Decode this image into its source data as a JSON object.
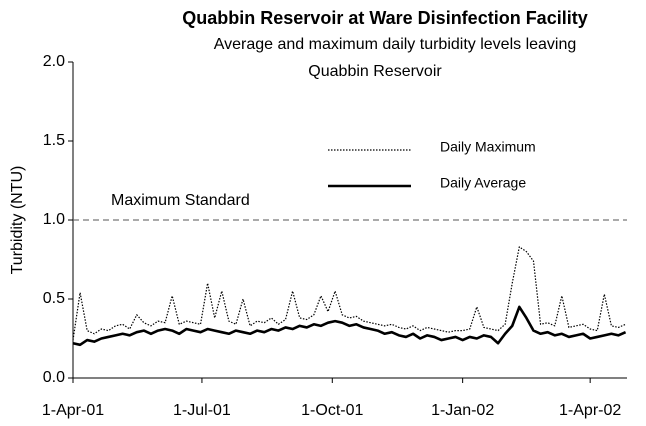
{
  "chart_data": {
    "type": "line",
    "title": "Quabbin Reservoir at Ware Disinfection Facility",
    "subtitle": [
      "Average and maximum daily turbidity levels leaving",
      "Quabbin Reservoir"
    ],
    "y_label": "Turbidity (NTU)",
    "x": [
      "2001-04-01",
      "2001-04-06",
      "2001-04-11",
      "2001-04-16",
      "2001-04-21",
      "2001-04-26",
      "2001-05-01",
      "2001-05-06",
      "2001-05-11",
      "2001-05-16",
      "2001-05-21",
      "2001-05-26",
      "2001-05-31",
      "2001-06-05",
      "2001-06-10",
      "2001-06-15",
      "2001-06-20",
      "2001-06-25",
      "2001-06-30",
      "2001-07-05",
      "2001-07-10",
      "2001-07-15",
      "2001-07-20",
      "2001-07-25",
      "2001-07-30",
      "2001-08-04",
      "2001-08-09",
      "2001-08-14",
      "2001-08-19",
      "2001-08-24",
      "2001-08-29",
      "2001-09-03",
      "2001-09-08",
      "2001-09-13",
      "2001-09-18",
      "2001-09-23",
      "2001-09-28",
      "2001-10-03",
      "2001-10-08",
      "2001-10-13",
      "2001-10-18",
      "2001-10-23",
      "2001-10-28",
      "2001-11-02",
      "2001-11-07",
      "2001-11-12",
      "2001-11-17",
      "2001-11-22",
      "2001-11-27",
      "2001-12-02",
      "2001-12-07",
      "2001-12-12",
      "2001-12-17",
      "2001-12-22",
      "2001-12-27",
      "2002-01-01",
      "2002-01-06",
      "2002-01-11",
      "2002-01-16",
      "2002-01-21",
      "2002-01-26",
      "2002-01-31",
      "2002-02-05",
      "2002-02-10",
      "2002-02-15",
      "2002-02-20",
      "2002-02-25",
      "2002-03-02",
      "2002-03-07",
      "2002-03-12",
      "2002-03-17",
      "2002-03-22",
      "2002-03-27",
      "2002-04-01",
      "2002-04-06",
      "2002-04-11",
      "2002-04-16",
      "2002-04-21",
      "2002-04-26"
    ],
    "series": [
      {
        "name": "Daily Maximum",
        "color": "#000000",
        "style": "dotted",
        "width": 1.2,
        "values": [
          0.24,
          0.54,
          0.3,
          0.28,
          0.31,
          0.3,
          0.33,
          0.34,
          0.31,
          0.4,
          0.35,
          0.33,
          0.36,
          0.35,
          0.52,
          0.34,
          0.36,
          0.35,
          0.34,
          0.6,
          0.38,
          0.55,
          0.36,
          0.34,
          0.5,
          0.33,
          0.36,
          0.35,
          0.38,
          0.34,
          0.37,
          0.55,
          0.38,
          0.37,
          0.4,
          0.52,
          0.42,
          0.55,
          0.4,
          0.38,
          0.39,
          0.36,
          0.35,
          0.34,
          0.33,
          0.34,
          0.32,
          0.31,
          0.33,
          0.3,
          0.32,
          0.31,
          0.3,
          0.29,
          0.3,
          0.3,
          0.31,
          0.45,
          0.32,
          0.31,
          0.3,
          0.34,
          0.6,
          0.83,
          0.8,
          0.74,
          0.34,
          0.35,
          0.33,
          0.52,
          0.32,
          0.33,
          0.34,
          0.31,
          0.3,
          0.53,
          0.33,
          0.32,
          0.34
        ]
      },
      {
        "name": "Daily Average",
        "color": "#000000",
        "style": "solid",
        "width": 2.6,
        "values": [
          0.22,
          0.21,
          0.24,
          0.23,
          0.25,
          0.26,
          0.27,
          0.28,
          0.27,
          0.29,
          0.3,
          0.28,
          0.3,
          0.31,
          0.3,
          0.28,
          0.31,
          0.3,
          0.29,
          0.31,
          0.3,
          0.29,
          0.28,
          0.3,
          0.29,
          0.28,
          0.3,
          0.29,
          0.31,
          0.3,
          0.32,
          0.31,
          0.33,
          0.32,
          0.34,
          0.33,
          0.35,
          0.36,
          0.35,
          0.33,
          0.34,
          0.32,
          0.31,
          0.3,
          0.28,
          0.29,
          0.27,
          0.26,
          0.28,
          0.25,
          0.27,
          0.26,
          0.24,
          0.25,
          0.26,
          0.24,
          0.26,
          0.25,
          0.27,
          0.26,
          0.22,
          0.28,
          0.33,
          0.45,
          0.38,
          0.3,
          0.28,
          0.29,
          0.27,
          0.28,
          0.26,
          0.27,
          0.28,
          0.25,
          0.26,
          0.27,
          0.28,
          0.27,
          0.29
        ]
      }
    ],
    "threshold": {
      "value": 1.0,
      "label": "Maximum Standard",
      "style": "dashed",
      "color": "#555555"
    },
    "xlim": [
      "2001-04-01",
      "2002-04-27"
    ],
    "xticks": [
      {
        "value": "2001-04-01",
        "label": "1-Apr-01"
      },
      {
        "value": "2001-07-01",
        "label": "1-Jul-01"
      },
      {
        "value": "2001-10-01",
        "label": "1-Oct-01"
      },
      {
        "value": "2002-01-01",
        "label": "1-Jan-02"
      },
      {
        "value": "2002-04-01",
        "label": "1-Apr-02"
      }
    ],
    "ylim": [
      0,
      2
    ],
    "yticks": [
      {
        "value": 0,
        "label": "0.0"
      },
      {
        "value": 0.5,
        "label": "0.5"
      },
      {
        "value": 1,
        "label": "1.0"
      },
      {
        "value": 1.5,
        "label": "1.5"
      },
      {
        "value": 2,
        "label": "2.0"
      }
    ],
    "grid": false,
    "legend": "upper right"
  }
}
